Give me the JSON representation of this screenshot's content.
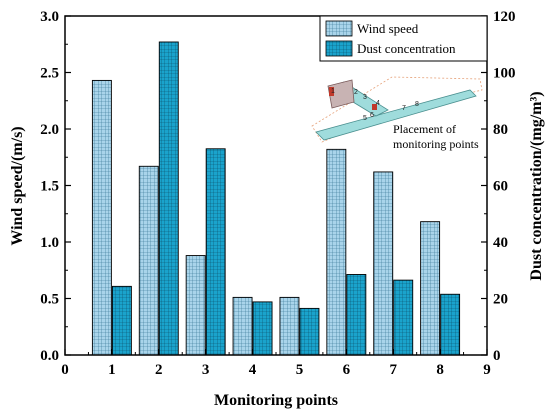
{
  "chart_data": {
    "type": "bar",
    "xlabel": "Monitoring points",
    "ylabel_left": "Wind speed/(m/s)",
    "ylabel_right": "Dust concentration/(mg/m³)",
    "categories": [
      "1",
      "2",
      "3",
      "4",
      "5",
      "6",
      "7",
      "8"
    ],
    "x_ticks": [
      "0",
      "1",
      "2",
      "3",
      "4",
      "5",
      "6",
      "7",
      "8",
      "9"
    ],
    "xlim": [
      0,
      9
    ],
    "ylim_left": [
      0,
      3.0
    ],
    "ylim_right": [
      0,
      120
    ],
    "y_ticks_left": [
      "0.0",
      "0.5",
      "1.0",
      "1.5",
      "2.0",
      "2.5",
      "3.0"
    ],
    "y_ticks_right": [
      "0",
      "20",
      "40",
      "60",
      "80",
      "100",
      "120"
    ],
    "series": [
      {
        "name": "Wind speed",
        "axis": "left",
        "color": "#a9d4ea",
        "values": [
          2.43,
          1.67,
          0.88,
          0.51,
          0.51,
          1.82,
          1.62,
          1.18
        ]
      },
      {
        "name": "Dust concentration",
        "axis": "right",
        "color": "#1aa3cc",
        "values": [
          24.3,
          110.8,
          73.0,
          18.8,
          16.5,
          28.5,
          26.5,
          21.5
        ]
      }
    ],
    "legend_position": "top-right",
    "grid": false,
    "inset": {
      "caption_line1": "Placement of",
      "caption_line2": "monitoring points",
      "point_labels": [
        "1",
        "2",
        "3",
        "4",
        "5",
        "6",
        "7",
        "8"
      ]
    }
  }
}
